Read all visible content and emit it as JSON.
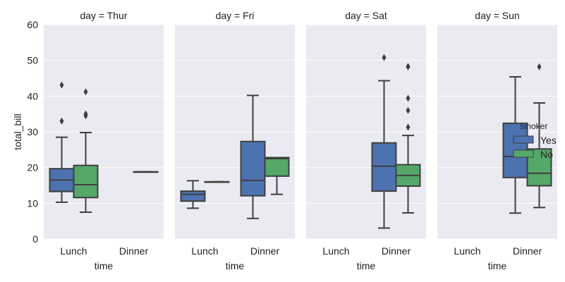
{
  "chart_data": {
    "type": "box",
    "facet_label_prefix": "day = ",
    "facets": [
      "Thur",
      "Fri",
      "Sat",
      "Sun"
    ],
    "categories": [
      "Lunch",
      "Dinner"
    ],
    "xlabel": "time",
    "ylabel": "total_bill",
    "ylim": [
      0,
      60
    ],
    "yticks": [
      0,
      10,
      20,
      30,
      40,
      50,
      60
    ],
    "grid": true,
    "legend": {
      "title": "smoker",
      "placement": "right",
      "entries": [
        "Yes",
        "No"
      ]
    },
    "hue_colors": {
      "Yes": "#4c72b0",
      "No": "#55a868"
    },
    "background": "#eaeaf2",
    "boxes": [
      {
        "facet": "Thur",
        "time": "Lunch",
        "smoker": "Yes",
        "whislo": 10.3,
        "q1": 13.3,
        "med": 16.5,
        "q3": 19.7,
        "whishi": 28.5,
        "fliers": [
          33.0,
          43.1
        ]
      },
      {
        "facet": "Thur",
        "time": "Lunch",
        "smoker": "No",
        "whislo": 7.5,
        "q1": 11.6,
        "med": 15.2,
        "q3": 20.6,
        "whishi": 29.8,
        "fliers": [
          34.5,
          35.0,
          41.2
        ]
      },
      {
        "facet": "Thur",
        "time": "Dinner",
        "smoker": "No",
        "whislo": 18.8,
        "q1": 18.8,
        "med": 18.8,
        "q3": 18.8,
        "whishi": 18.8,
        "fliers": []
      },
      {
        "facet": "Fri",
        "time": "Lunch",
        "smoker": "Yes",
        "whislo": 8.6,
        "q1": 10.6,
        "med": 12.5,
        "q3": 13.4,
        "whishi": 16.3,
        "fliers": []
      },
      {
        "facet": "Fri",
        "time": "Lunch",
        "smoker": "No",
        "whislo": 16.0,
        "q1": 16.0,
        "med": 16.0,
        "q3": 16.0,
        "whishi": 16.0,
        "fliers": []
      },
      {
        "facet": "Fri",
        "time": "Dinner",
        "smoker": "Yes",
        "whislo": 5.75,
        "q1": 12.1,
        "med": 16.4,
        "q3": 27.3,
        "whishi": 40.2,
        "fliers": []
      },
      {
        "facet": "Fri",
        "time": "Dinner",
        "smoker": "No",
        "whislo": 12.5,
        "q1": 17.6,
        "med": 22.5,
        "q3": 22.8,
        "whishi": 22.8,
        "fliers": []
      },
      {
        "facet": "Sat",
        "time": "Dinner",
        "smoker": "Yes",
        "whislo": 3.07,
        "q1": 13.4,
        "med": 20.4,
        "q3": 26.9,
        "whishi": 44.3,
        "fliers": [
          50.8
        ]
      },
      {
        "facet": "Sat",
        "time": "Dinner",
        "smoker": "No",
        "whislo": 7.3,
        "q1": 14.8,
        "med": 17.8,
        "q3": 20.8,
        "whishi": 29.0,
        "fliers": [
          31.3,
          36.0,
          39.4,
          48.2,
          48.3
        ]
      },
      {
        "facet": "Sun",
        "time": "Dinner",
        "smoker": "Yes",
        "whislo": 7.25,
        "q1": 17.2,
        "med": 23.1,
        "q3": 32.4,
        "whishi": 45.4,
        "fliers": []
      },
      {
        "facet": "Sun",
        "time": "Dinner",
        "smoker": "No",
        "whislo": 8.8,
        "q1": 14.9,
        "med": 18.4,
        "q3": 25.2,
        "whishi": 38.1,
        "fliers": [
          48.2
        ]
      }
    ]
  }
}
